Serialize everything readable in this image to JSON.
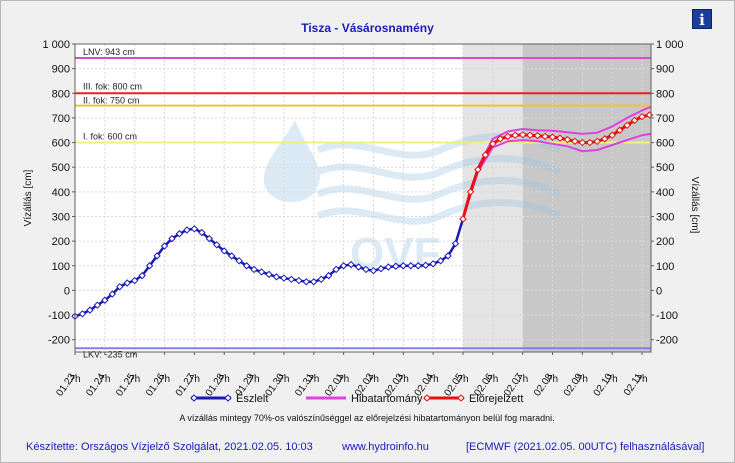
{
  "window": {
    "title": "Tisza - Vásárosnamény",
    "info_label": "i"
  },
  "footer": {
    "author": "Készítette: Országos Vízjelző Szolgálat, 2021.02.05. 10:03",
    "website": "www.hydroinfo.hu",
    "model": "[ECMWF (2021.02.05. 00UTC) felhasználásával]"
  },
  "note": "A vízállás mintegy 70%-os valószínűséggel az előrejelzési hibatartományon belül fog maradni.",
  "colors": {
    "observed": "#1a1ab8",
    "forecast": "#e81010",
    "error_band": "#e040e0",
    "lnv": "#d050d0",
    "lkv": "#8080e8"
  },
  "chart_data": {
    "type": "line",
    "title": "Tisza - Vásárosnamény",
    "ylabel_left": "Vízállás [cm]",
    "ylabel_right": "Vízállás [cm]",
    "ylim": [
      -250,
      1000
    ],
    "yticks": [
      "1 000",
      "900",
      "800",
      "700",
      "600",
      "500",
      "400",
      "300",
      "200",
      "100",
      "0",
      "-100",
      "-200"
    ],
    "yticks_right": [
      "1 000",
      "900",
      "800",
      "700",
      "600",
      "500",
      "400",
      "300",
      "200",
      "100",
      "0",
      "-100",
      "-200"
    ],
    "xlim": [
      0,
      19.3
    ],
    "xticks": [
      {
        "date": "01.23.",
        "hour": "7h"
      },
      {
        "date": "01.24.",
        "hour": "7h"
      },
      {
        "date": "01.25.",
        "hour": "7h"
      },
      {
        "date": "01.26.",
        "hour": "7h"
      },
      {
        "date": "01.27.",
        "hour": "7h"
      },
      {
        "date": "01.28.",
        "hour": "7h"
      },
      {
        "date": "01.29.",
        "hour": "7h"
      },
      {
        "date": "01.30.",
        "hour": "7h"
      },
      {
        "date": "01.31.",
        "hour": "7h"
      },
      {
        "date": "02.01.",
        "hour": "7h"
      },
      {
        "date": "02.02.",
        "hour": "7h"
      },
      {
        "date": "02.03.",
        "hour": "7h"
      },
      {
        "date": "02.04.",
        "hour": "7h"
      },
      {
        "date": "02.05.",
        "hour": "7h"
      },
      {
        "date": "02.06.",
        "hour": "7h"
      },
      {
        "date": "02.07.",
        "hour": "7h"
      },
      {
        "date": "02.08.",
        "hour": "7h"
      },
      {
        "date": "02.09.",
        "hour": "7h"
      },
      {
        "date": "02.10.",
        "hour": "7h"
      },
      {
        "date": "02.11.",
        "hour": "7h"
      }
    ],
    "reference_lines": [
      {
        "label": "LNV: 943 cm",
        "value": 943,
        "color": "#d050d0"
      },
      {
        "label": "III. fok: 800 cm",
        "value": 800,
        "color": "#e82020"
      },
      {
        "label": "II. fok: 750 cm",
        "value": 750,
        "color": "#f0c040"
      },
      {
        "label": "I. fok: 600 cm",
        "value": 600,
        "color": "#f0f080"
      },
      {
        "label": "LKV: -235 cm",
        "value": -235,
        "color": "#8080e8"
      }
    ],
    "shaded_regions": [
      {
        "from": 13.0,
        "to": 15.0,
        "color": "#e4e4e4"
      },
      {
        "from": 15.0,
        "to": 19.3,
        "color": "#c8c8c8"
      }
    ],
    "watermark": "OVF",
    "legend": {
      "position": "bottom-center"
    },
    "series": [
      {
        "name": "Észlelt",
        "color": "#1a1ab8",
        "x": [
          0,
          0.25,
          0.5,
          0.75,
          1.0,
          1.25,
          1.5,
          1.75,
          2.0,
          2.25,
          2.5,
          2.75,
          3.0,
          3.25,
          3.5,
          3.75,
          4.0,
          4.25,
          4.5,
          4.75,
          5.0,
          5.25,
          5.5,
          5.75,
          6.0,
          6.25,
          6.5,
          6.75,
          7.0,
          7.25,
          7.5,
          7.75,
          8.0,
          8.25,
          8.5,
          8.75,
          9.0,
          9.25,
          9.5,
          9.75,
          10.0,
          10.25,
          10.5,
          10.75,
          11.0,
          11.25,
          11.5,
          11.75,
          12.0,
          12.25,
          12.5,
          12.75,
          13.0
        ],
        "values": [
          -105,
          -95,
          -80,
          -60,
          -40,
          -15,
          15,
          30,
          40,
          60,
          100,
          140,
          180,
          210,
          230,
          245,
          250,
          235,
          210,
          185,
          160,
          140,
          120,
          100,
          85,
          75,
          65,
          55,
          50,
          45,
          40,
          35,
          35,
          45,
          60,
          85,
          100,
          105,
          95,
          85,
          80,
          88,
          95,
          98,
          100,
          100,
          100,
          102,
          108,
          120,
          140,
          190,
          290
        ]
      },
      {
        "name": "Előrejelzett",
        "color": "#e81010",
        "x": [
          13.0,
          13.25,
          13.5,
          13.75,
          14.0,
          14.25,
          14.5,
          14.75,
          15.0,
          15.25,
          15.5,
          15.75,
          16.0,
          16.25,
          16.5,
          16.75,
          17.0,
          17.25,
          17.5,
          17.75,
          18.0,
          18.25,
          18.5,
          18.75,
          19.0,
          19.25
        ],
        "values": [
          290,
          400,
          490,
          550,
          595,
          615,
          625,
          630,
          632,
          630,
          628,
          625,
          622,
          618,
          612,
          605,
          600,
          600,
          605,
          615,
          630,
          650,
          670,
          690,
          705,
          712
        ]
      },
      {
        "name": "Hibatartomány",
        "color": "#e040e0",
        "x": [
          13.0,
          13.5,
          14.0,
          14.5,
          15.0,
          15.5,
          16.0,
          16.5,
          17.0,
          17.5,
          18.0,
          18.5,
          19.0,
          19.3
        ],
        "upper": [
          290,
          500,
          615,
          645,
          655,
          650,
          648,
          642,
          635,
          640,
          665,
          700,
          730,
          745
        ],
        "lower": [
          290,
          480,
          580,
          605,
          610,
          605,
          595,
          585,
          565,
          570,
          590,
          610,
          630,
          635
        ]
      }
    ]
  }
}
